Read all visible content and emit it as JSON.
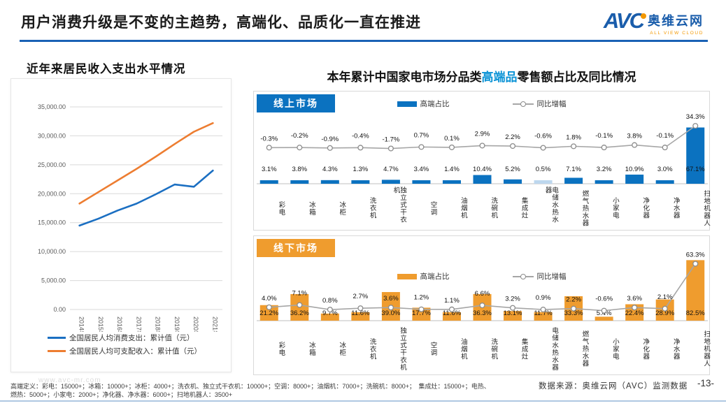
{
  "slide": {
    "title": "用户消费升级是不变的主趋势，高端化、品质化一直在推进",
    "page_number": "-13-",
    "data_source": "数据来源：奥维云网（AVC）监测数据",
    "watermark": "www.avc-mr.com",
    "footnote_line1": "高端定义：彩电：15000+；冰箱：10000+；冰柜：4000+；洗衣机、独立式干衣机：10000+；空调：8000+；油烟机：7000+；洗碗机：8000+；　集成灶：15000+；电热、",
    "footnote_line2": "燃热：5000+；小家电：2000+；净化器、净水器：6000+；扫地机器人：3500+"
  },
  "logo": {
    "abbr": "AVC",
    "cn": "奥维云网",
    "en": "ALL VIEW CLOUD"
  },
  "right_title": {
    "prefix": "本年累计中国家电市场分品类",
    "highlight": "高端品",
    "suffix": "零售额占比及同比情况"
  },
  "colors": {
    "accent_blue": "#1A62B5",
    "bar_blue": "#0B72C0",
    "bar_blue_light": "#BDD7EE",
    "bar_orange": "#EF9C2E",
    "line_gray": "#A6A6A6",
    "series_blue": "#1B6FC2",
    "series_orange": "#ED7D31",
    "highlight_blue": "#0B93D6"
  },
  "chart_data": [
    {
      "type": "line",
      "title": "近年来居民收入支出水平情况",
      "categories": [
        "2014年",
        "2015年",
        "2016年",
        "2017年",
        "2018年",
        "2019年",
        "2020年",
        "2021年"
      ],
      "series": [
        {
          "name": "全国居民人均消费支出：累计值（元）",
          "color_key": "series_blue",
          "values": [
            14500,
            15700,
            17100,
            18300,
            19900,
            21600,
            21200,
            24000
          ]
        },
        {
          "name": "全国居民人均可支配收入：累计值（元）",
          "color_key": "series_orange",
          "values": [
            18300,
            20300,
            22300,
            24300,
            26400,
            28600,
            30700,
            32200
          ]
        }
      ],
      "ylim": [
        0,
        35000
      ],
      "ytick_step": 5000,
      "ytick_labels": [
        "35,000.00",
        "30,000.00",
        "25,000.00",
        "20,000.00",
        "15,000.00",
        "10,000.00",
        "5,000.00",
        "0.00"
      ],
      "grid": true,
      "legend_position": "bottom"
    },
    {
      "type": "bar-line",
      "market_label": "线上市场",
      "categories": [
        "彩电",
        "冰箱",
        "冰柜",
        "洗衣机",
        "独立式干衣机",
        "空调",
        "油烟机",
        "洗碗机",
        "集成灶",
        "电储水热水器",
        "燃气热水器",
        "小家电",
        "净化器",
        "净水器",
        "扫地机器人"
      ],
      "bar_series": {
        "name": "高端占比",
        "color_key": "bar_blue",
        "values": [
          3.1,
          3.8,
          4.3,
          1.3,
          4.7,
          3.4,
          1.4,
          10.4,
          5.2,
          0.5,
          7.1,
          3.2,
          10.9,
          3.0,
          67.1
        ]
      },
      "light_bar_index": 9,
      "line_series": {
        "name": "同比增幅",
        "color_key": "line_gray",
        "values": [
          -0.3,
          -0.2,
          -0.9,
          -0.4,
          -1.7,
          0.7,
          0.1,
          2.9,
          2.2,
          -0.6,
          1.8,
          -0.1,
          3.8,
          -0.1,
          34.3
        ]
      },
      "value_suffix": "%"
    },
    {
      "type": "bar-line",
      "market_label": "线下市场",
      "categories": [
        "彩电",
        "冰箱",
        "冰柜",
        "洗衣机",
        "独立式干衣机",
        "空调",
        "油烟机",
        "洗碗机",
        "集成灶",
        "电储水热水器",
        "燃气热水器",
        "小家电",
        "净化器",
        "净水器",
        "扫地机器人"
      ],
      "bar_series": {
        "name": "高端占比",
        "color_key": "bar_orange",
        "values": [
          21.2,
          36.2,
          9.7,
          11.6,
          39.0,
          17.7,
          11.6,
          36.3,
          13.1,
          11.7,
          33.3,
          5.4,
          22.4,
          28.9,
          82.5
        ]
      },
      "line_series": {
        "name": "同比增幅",
        "color_key": "line_gray",
        "values": [
          4.0,
          7.1,
          0.8,
          2.7,
          3.6,
          1.2,
          1.1,
          6.6,
          3.2,
          0.9,
          2.2,
          -0.6,
          3.6,
          2.1,
          63.3
        ]
      },
      "value_suffix": "%"
    }
  ]
}
